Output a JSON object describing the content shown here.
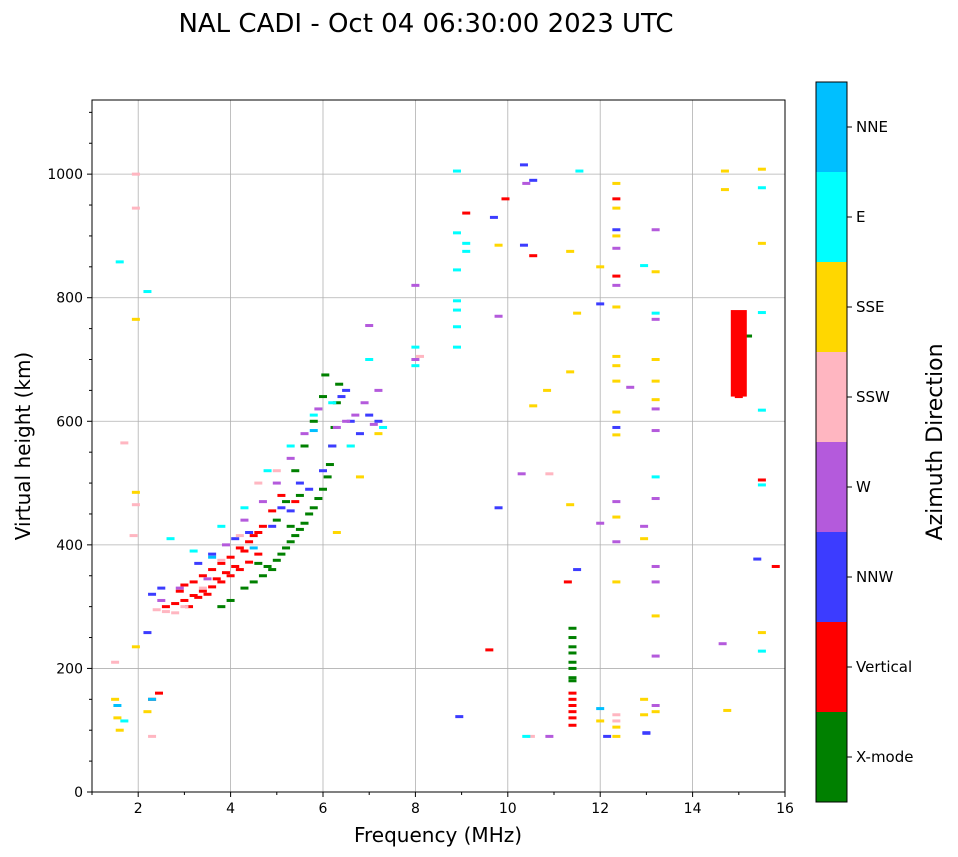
{
  "chart_data": {
    "type": "scatter",
    "title": "NAL CADI - Oct 04 06:30:00 2023 UTC",
    "xlabel": "Frequency (MHz)",
    "ylabel": "Virtual height (km)",
    "xlim": [
      1,
      16
    ],
    "ylim": [
      0,
      1120
    ],
    "xticks": [
      2,
      4,
      6,
      8,
      10,
      12,
      14,
      16
    ],
    "xtick_labels": [
      "2",
      "4",
      "6",
      "8",
      "10",
      "12",
      "14",
      "16"
    ],
    "yticks": [
      0,
      200,
      400,
      600,
      800,
      1000
    ],
    "ytick_labels": [
      "0",
      "200",
      "400",
      "600",
      "800",
      "1000"
    ],
    "grid": true,
    "colorbar": {
      "title": "Azimuth Direction",
      "categories": [
        "X-mode",
        "Vertical",
        "NNW",
        "W",
        "SSW",
        "SSE",
        "E",
        "NNE"
      ],
      "colors": [
        "#008000",
        "#ff0000",
        "#3c3cff",
        "#b45adc",
        "#ffb6c1",
        "#ffd700",
        "#00ffff",
        "#00bfff"
      ]
    },
    "series": [
      {
        "name": "X-mode",
        "points": [
          [
            3.8,
            300
          ],
          [
            4.0,
            310
          ],
          [
            4.3,
            330
          ],
          [
            4.5,
            340
          ],
          [
            4.7,
            350
          ],
          [
            4.9,
            360
          ],
          [
            5.0,
            375
          ],
          [
            5.1,
            385
          ],
          [
            5.2,
            395
          ],
          [
            5.3,
            405
          ],
          [
            5.4,
            415
          ],
          [
            5.5,
            425
          ],
          [
            5.6,
            435
          ],
          [
            5.7,
            450
          ],
          [
            5.8,
            460
          ],
          [
            5.9,
            475
          ],
          [
            6.0,
            490
          ],
          [
            6.1,
            510
          ],
          [
            6.15,
            530
          ],
          [
            6.2,
            560
          ],
          [
            6.25,
            590
          ],
          [
            6.3,
            630
          ],
          [
            6.35,
            660
          ],
          [
            5.0,
            440
          ],
          [
            5.2,
            470
          ],
          [
            5.4,
            520
          ],
          [
            5.6,
            560
          ],
          [
            5.8,
            600
          ],
          [
            6.0,
            640
          ],
          [
            6.05,
            675
          ],
          [
            4.6,
            370
          ],
          [
            4.8,
            365
          ],
          [
            5.3,
            430
          ],
          [
            5.5,
            480
          ],
          [
            11.4,
            265
          ],
          [
            11.4,
            250
          ],
          [
            11.4,
            235
          ],
          [
            11.4,
            225
          ],
          [
            11.4,
            210
          ],
          [
            11.4,
            200
          ],
          [
            11.4,
            185
          ],
          [
            11.4,
            180
          ],
          [
            15.2,
            738
          ]
        ]
      },
      {
        "name": "Vertical",
        "points": [
          [
            2.6,
            300
          ],
          [
            2.8,
            305
          ],
          [
            3.0,
            310
          ],
          [
            3.2,
            318
          ],
          [
            3.4,
            325
          ],
          [
            3.6,
            332
          ],
          [
            3.8,
            340
          ],
          [
            4.0,
            350
          ],
          [
            4.2,
            360
          ],
          [
            4.4,
            372
          ],
          [
            4.6,
            385
          ],
          [
            3.0,
            335
          ],
          [
            3.2,
            340
          ],
          [
            3.4,
            350
          ],
          [
            3.6,
            360
          ],
          [
            3.8,
            370
          ],
          [
            4.0,
            380
          ],
          [
            4.2,
            395
          ],
          [
            4.4,
            405
          ],
          [
            4.6,
            420
          ],
          [
            3.1,
            300
          ],
          [
            3.3,
            315
          ],
          [
            3.5,
            320
          ],
          [
            3.7,
            345
          ],
          [
            3.9,
            355
          ],
          [
            4.1,
            365
          ],
          [
            4.3,
            390
          ],
          [
            4.5,
            415
          ],
          [
            4.7,
            430
          ],
          [
            4.9,
            455
          ],
          [
            5.1,
            480
          ],
          [
            5.4,
            470
          ],
          [
            2.9,
            325
          ],
          [
            2.3,
            150
          ],
          [
            2.45,
            160
          ],
          [
            9.1,
            937
          ],
          [
            9.6,
            230
          ],
          [
            9.95,
            960
          ],
          [
            10.55,
            868
          ],
          [
            11.3,
            340
          ],
          [
            11.4,
            160
          ],
          [
            11.4,
            150
          ],
          [
            11.4,
            140
          ],
          [
            11.4,
            130
          ],
          [
            11.4,
            120
          ],
          [
            11.4,
            108
          ],
          [
            12.35,
            960
          ],
          [
            12.35,
            835
          ],
          [
            15.0,
            640
          ],
          [
            15.5,
            505
          ],
          [
            15.8,
            365
          ]
        ]
      },
      {
        "name": "NNW",
        "points": [
          [
            2.3,
            320
          ],
          [
            2.5,
            330
          ],
          [
            3.3,
            370
          ],
          [
            3.6,
            385
          ],
          [
            4.1,
            410
          ],
          [
            4.4,
            420
          ],
          [
            4.9,
            430
          ],
          [
            5.3,
            455
          ],
          [
            5.7,
            490
          ],
          [
            6.0,
            520
          ],
          [
            6.2,
            560
          ],
          [
            6.4,
            640
          ],
          [
            6.6,
            600
          ],
          [
            6.8,
            580
          ],
          [
            7.0,
            610
          ],
          [
            7.2,
            600
          ],
          [
            5.1,
            460
          ],
          [
            5.5,
            500
          ],
          [
            6.5,
            650
          ],
          [
            2.2,
            258
          ],
          [
            8.95,
            122
          ],
          [
            9.8,
            460
          ],
          [
            9.7,
            930
          ],
          [
            10.35,
            1015
          ],
          [
            10.35,
            885
          ],
          [
            10.55,
            990
          ],
          [
            11.5,
            360
          ],
          [
            12.0,
            790
          ],
          [
            12.15,
            90
          ],
          [
            12.35,
            590
          ],
          [
            12.35,
            910
          ],
          [
            13.0,
            95
          ],
          [
            13.0,
            96
          ],
          [
            15.4,
            377
          ]
        ]
      },
      {
        "name": "W",
        "points": [
          [
            2.5,
            310
          ],
          [
            2.9,
            330
          ],
          [
            3.5,
            345
          ],
          [
            3.9,
            400
          ],
          [
            4.3,
            440
          ],
          [
            4.7,
            470
          ],
          [
            5.0,
            500
          ],
          [
            5.3,
            540
          ],
          [
            5.6,
            580
          ],
          [
            5.9,
            620
          ],
          [
            6.3,
            590
          ],
          [
            6.5,
            600
          ],
          [
            6.7,
            610
          ],
          [
            6.9,
            630
          ],
          [
            7.1,
            595
          ],
          [
            7.0,
            755
          ],
          [
            7.2,
            650
          ],
          [
            8.0,
            820
          ],
          [
            8.0,
            700
          ],
          [
            9.8,
            770
          ],
          [
            10.4,
            985
          ],
          [
            10.3,
            515
          ],
          [
            10.9,
            90
          ],
          [
            12.0,
            435
          ],
          [
            12.35,
            470
          ],
          [
            12.35,
            405
          ],
          [
            12.35,
            880
          ],
          [
            12.35,
            820
          ],
          [
            12.65,
            655
          ],
          [
            12.95,
            430
          ],
          [
            13.2,
            910
          ],
          [
            13.2,
            765
          ],
          [
            13.2,
            620
          ],
          [
            13.2,
            585
          ],
          [
            13.2,
            475
          ],
          [
            13.2,
            365
          ],
          [
            13.2,
            340
          ],
          [
            13.2,
            220
          ],
          [
            13.2,
            140
          ],
          [
            14.65,
            240
          ]
        ]
      },
      {
        "name": "SSW",
        "points": [
          [
            2.4,
            295
          ],
          [
            2.6,
            292
          ],
          [
            2.8,
            290
          ],
          [
            3.0,
            300
          ],
          [
            3.4,
            330
          ],
          [
            3.8,
            375
          ],
          [
            4.2,
            415
          ],
          [
            4.6,
            500
          ],
          [
            5.0,
            520
          ],
          [
            1.5,
            210
          ],
          [
            1.7,
            565
          ],
          [
            1.9,
            415
          ],
          [
            1.95,
            465
          ],
          [
            1.95,
            945
          ],
          [
            1.95,
            1000
          ],
          [
            2.3,
            90
          ],
          [
            8.1,
            705
          ],
          [
            10.5,
            90
          ],
          [
            10.9,
            515
          ],
          [
            12.35,
            125
          ],
          [
            12.35,
            115
          ]
        ]
      },
      {
        "name": "SSE",
        "points": [
          [
            1.5,
            150
          ],
          [
            1.55,
            120
          ],
          [
            1.6,
            100
          ],
          [
            1.95,
            235
          ],
          [
            1.95,
            485
          ],
          [
            1.95,
            765
          ],
          [
            2.2,
            130
          ],
          [
            6.3,
            420
          ],
          [
            6.6,
            560
          ],
          [
            6.8,
            510
          ],
          [
            7.2,
            580
          ],
          [
            9.8,
            885
          ],
          [
            10.55,
            625
          ],
          [
            10.85,
            650
          ],
          [
            11.35,
            875
          ],
          [
            11.35,
            680
          ],
          [
            11.35,
            465
          ],
          [
            11.5,
            775
          ],
          [
            12.0,
            850
          ],
          [
            12.0,
            115
          ],
          [
            12.35,
            985
          ],
          [
            12.35,
            945
          ],
          [
            12.35,
            900
          ],
          [
            12.35,
            785
          ],
          [
            12.35,
            705
          ],
          [
            12.35,
            690
          ],
          [
            12.35,
            665
          ],
          [
            12.35,
            615
          ],
          [
            12.35,
            578
          ],
          [
            12.35,
            445
          ],
          [
            12.35,
            340
          ],
          [
            12.35,
            105
          ],
          [
            12.35,
            90
          ],
          [
            12.95,
            410
          ],
          [
            12.95,
            150
          ],
          [
            12.95,
            125
          ],
          [
            13.2,
            842
          ],
          [
            13.2,
            700
          ],
          [
            13.2,
            665
          ],
          [
            13.2,
            635
          ],
          [
            13.2,
            285
          ],
          [
            13.2,
            130
          ],
          [
            14.7,
            975
          ],
          [
            14.7,
            1005
          ],
          [
            14.75,
            132
          ],
          [
            15.5,
            1008
          ],
          [
            15.5,
            888
          ],
          [
            15.5,
            258
          ]
        ]
      },
      {
        "name": "E",
        "points": [
          [
            1.6,
            858
          ],
          [
            1.7,
            115
          ],
          [
            2.2,
            810
          ],
          [
            2.7,
            410
          ],
          [
            3.2,
            390
          ],
          [
            3.8,
            430
          ],
          [
            4.3,
            460
          ],
          [
            4.8,
            520
          ],
          [
            5.3,
            560
          ],
          [
            5.8,
            610
          ],
          [
            6.2,
            630
          ],
          [
            6.6,
            560
          ],
          [
            7.0,
            700
          ],
          [
            7.3,
            590
          ],
          [
            8.0,
            720
          ],
          [
            8.0,
            690
          ],
          [
            8.9,
            1005
          ],
          [
            8.9,
            905
          ],
          [
            8.9,
            845
          ],
          [
            8.9,
            795
          ],
          [
            8.9,
            780
          ],
          [
            8.9,
            753
          ],
          [
            8.9,
            720
          ],
          [
            9.1,
            888
          ],
          [
            9.1,
            875
          ],
          [
            10.4,
            90
          ],
          [
            11.55,
            1005
          ],
          [
            12.95,
            852
          ],
          [
            13.2,
            775
          ],
          [
            13.2,
            510
          ],
          [
            15.0,
            712
          ],
          [
            15.5,
            978
          ],
          [
            15.5,
            776
          ],
          [
            15.5,
            618
          ],
          [
            15.5,
            497
          ],
          [
            15.5,
            228
          ]
        ]
      },
      {
        "name": "NNE",
        "points": [
          [
            1.55,
            140
          ],
          [
            2.3,
            150
          ],
          [
            3.6,
            380
          ],
          [
            4.5,
            395
          ],
          [
            5.8,
            585
          ],
          [
            12.0,
            135
          ]
        ]
      }
    ],
    "bars": [
      {
        "series": "Vertical",
        "x": 15.0,
        "y_from": 640,
        "y_to": 780
      }
    ]
  }
}
